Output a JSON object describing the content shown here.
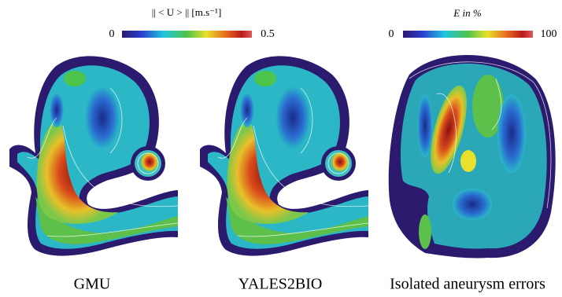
{
  "colorbars": [
    {
      "label": "|| < U > || [m.s⁻¹]",
      "min": 0,
      "max": 0.5
    },
    {
      "label": "E in %",
      "min": 0,
      "max": 100
    }
  ],
  "panels": [
    {
      "caption": "GMU"
    },
    {
      "caption": "YALES2BIO"
    },
    {
      "caption": "Isolated aneurysm errors"
    }
  ]
}
